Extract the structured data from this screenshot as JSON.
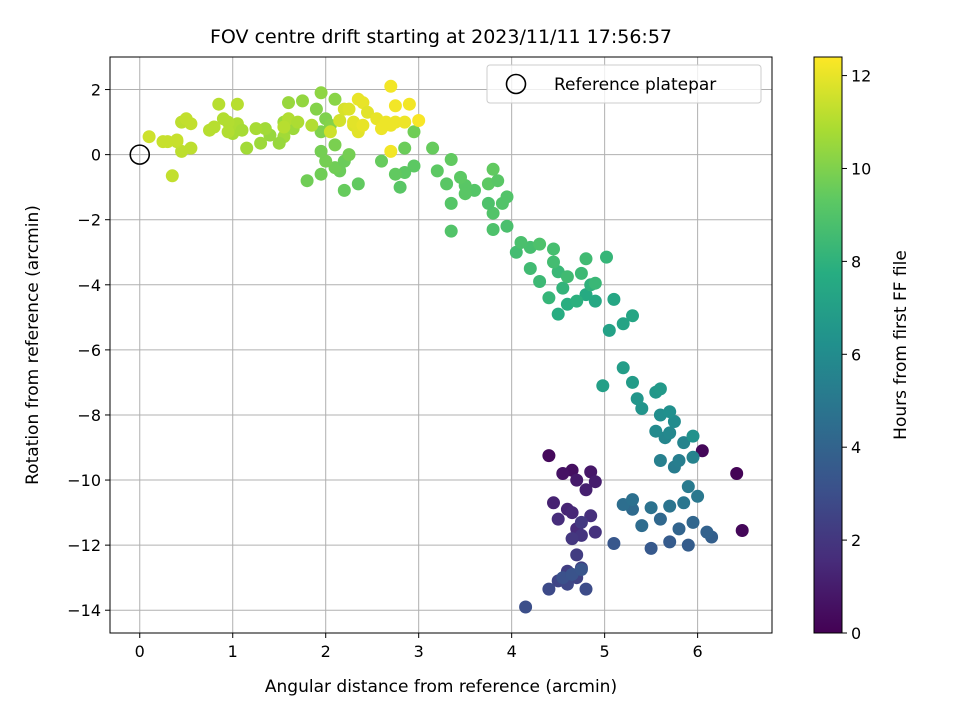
{
  "chart_data": {
    "type": "scatter",
    "title": "FOV centre drift starting at 2023/11/11 17:56:57",
    "xlabel": "Angular distance from reference (arcmin)",
    "ylabel": "Rotation from reference (arcmin)",
    "xlim": [
      -0.32,
      6.8
    ],
    "ylim": [
      -14.7,
      3.0
    ],
    "xticks": [
      0,
      1,
      2,
      3,
      4,
      5,
      6
    ],
    "xtick_labels": [
      "0",
      "1",
      "2",
      "3",
      "4",
      "5",
      "6"
    ],
    "yticks": [
      2,
      0,
      -2,
      -4,
      -6,
      -8,
      -10,
      -12,
      -14
    ],
    "ytick_labels": [
      "2",
      "0",
      "−2",
      "−4",
      "−6",
      "−8",
      "−10",
      "−12",
      "−14"
    ],
    "grid": true,
    "legend": {
      "label": "Reference platepar",
      "placement": "top-right"
    },
    "reference_point": {
      "x": 0,
      "y": 0
    },
    "colorbar": {
      "label": "Hours from first FF file",
      "colormap": "viridis",
      "range": [
        0,
        12.4
      ],
      "ticks": [
        0,
        2,
        4,
        6,
        8,
        10,
        12
      ],
      "tick_labels": [
        "0",
        "2",
        "4",
        "6",
        "8",
        "10",
        "12"
      ]
    },
    "series": [
      {
        "points": [
          [
            4.4,
            -9.25,
            0.3
          ],
          [
            6.05,
            -9.1,
            0.2
          ],
          [
            6.42,
            -9.8,
            0.1
          ],
          [
            6.48,
            -11.55,
            0.2
          ],
          [
            4.65,
            -9.7,
            0.5
          ],
          [
            4.55,
            -9.8,
            0.6
          ],
          [
            4.85,
            -9.75,
            0.8
          ],
          [
            4.7,
            -10.0,
            0.9
          ],
          [
            4.9,
            -10.05,
            1.0
          ],
          [
            4.8,
            -10.3,
            1.1
          ],
          [
            4.45,
            -10.7,
            1.2
          ],
          [
            4.6,
            -10.9,
            1.3
          ],
          [
            4.65,
            -11.0,
            1.4
          ],
          [
            4.7,
            -11.5,
            1.5
          ],
          [
            4.5,
            -11.2,
            1.6
          ],
          [
            4.85,
            -11.1,
            1.7
          ],
          [
            4.9,
            -11.6,
            1.8
          ],
          [
            4.75,
            -11.7,
            1.9
          ],
          [
            4.65,
            -11.8,
            2.0
          ],
          [
            4.75,
            -11.3,
            2.1
          ],
          [
            4.7,
            -12.3,
            2.2
          ],
          [
            4.6,
            -12.8,
            2.3
          ],
          [
            4.75,
            -12.7,
            2.4
          ],
          [
            4.7,
            -13.0,
            2.5
          ],
          [
            4.5,
            -13.1,
            2.6
          ],
          [
            4.6,
            -13.2,
            2.7
          ],
          [
            4.4,
            -13.35,
            2.8
          ],
          [
            4.8,
            -13.35,
            2.9
          ],
          [
            4.15,
            -13.9,
            3.0
          ],
          [
            4.55,
            -13.0,
            3.1
          ],
          [
            4.65,
            -12.9,
            3.2
          ],
          [
            4.75,
            -12.75,
            3.3
          ],
          [
            5.1,
            -11.95,
            3.4
          ],
          [
            5.5,
            -12.1,
            3.5
          ],
          [
            5.7,
            -11.9,
            3.6
          ],
          [
            5.9,
            -12.0,
            3.7
          ],
          [
            6.15,
            -11.75,
            3.8
          ],
          [
            6.1,
            -11.6,
            3.9
          ],
          [
            5.8,
            -11.5,
            4.0
          ],
          [
            5.95,
            -11.3,
            4.1
          ],
          [
            5.6,
            -11.2,
            4.2
          ],
          [
            5.3,
            -10.9,
            4.3
          ],
          [
            5.4,
            -11.4,
            4.4
          ],
          [
            5.2,
            -10.75,
            4.5
          ],
          [
            5.3,
            -10.6,
            4.6
          ],
          [
            5.5,
            -10.85,
            4.7
          ],
          [
            5.7,
            -10.8,
            4.8
          ],
          [
            5.85,
            -10.7,
            4.9
          ],
          [
            6.0,
            -10.5,
            5.0
          ],
          [
            5.9,
            -10.2,
            5.1
          ],
          [
            5.75,
            -9.6,
            5.2
          ],
          [
            5.8,
            -9.4,
            5.3
          ],
          [
            5.6,
            -9.4,
            5.4
          ],
          [
            5.95,
            -9.3,
            5.5
          ],
          [
            5.85,
            -8.85,
            5.6
          ],
          [
            5.65,
            -8.7,
            5.7
          ],
          [
            5.7,
            -8.55,
            5.8
          ],
          [
            5.55,
            -8.5,
            5.9
          ],
          [
            5.75,
            -8.2,
            6.0
          ],
          [
            5.6,
            -8.0,
            6.1
          ],
          [
            5.7,
            -7.9,
            6.2
          ],
          [
            5.95,
            -8.65,
            6.3
          ],
          [
            5.4,
            -7.8,
            6.4
          ],
          [
            5.35,
            -7.5,
            6.5
          ],
          [
            5.55,
            -7.3,
            6.6
          ],
          [
            5.6,
            -7.2,
            6.7
          ],
          [
            5.3,
            -7.0,
            6.8
          ],
          [
            5.2,
            -6.55,
            6.9
          ],
          [
            4.98,
            -7.1,
            7.0
          ],
          [
            5.05,
            -5.4,
            7.1
          ],
          [
            5.2,
            -5.2,
            7.2
          ],
          [
            5.3,
            -4.95,
            7.3
          ],
          [
            5.1,
            -4.45,
            7.4
          ],
          [
            4.9,
            -4.5,
            7.5
          ],
          [
            4.8,
            -4.3,
            7.6
          ],
          [
            4.5,
            -4.9,
            7.7
          ],
          [
            4.6,
            -4.6,
            7.8
          ],
          [
            4.7,
            -4.5,
            7.9
          ],
          [
            4.85,
            -4.0,
            8.0
          ],
          [
            4.55,
            -4.1,
            8.1
          ],
          [
            4.4,
            -4.4,
            8.2
          ],
          [
            4.5,
            -3.6,
            8.3
          ],
          [
            4.3,
            -3.9,
            8.4
          ],
          [
            4.2,
            -3.5,
            8.5
          ],
          [
            4.05,
            -3.0,
            8.6
          ],
          [
            4.2,
            -2.85,
            8.7
          ],
          [
            4.1,
            -2.7,
            8.8
          ],
          [
            4.3,
            -2.75,
            8.9
          ],
          [
            4.45,
            -3.3,
            8.6
          ],
          [
            4.6,
            -3.75,
            8.5
          ],
          [
            4.75,
            -3.65,
            8.4
          ],
          [
            4.9,
            -3.95,
            8.3
          ],
          [
            5.02,
            -3.15,
            8.2
          ],
          [
            4.8,
            -3.2,
            8.5
          ],
          [
            4.45,
            -2.9,
            8.7
          ],
          [
            3.95,
            -2.2,
            8.8
          ],
          [
            3.8,
            -2.3,
            8.9
          ],
          [
            3.8,
            -1.8,
            9.0
          ],
          [
            3.75,
            -1.5,
            8.9
          ],
          [
            3.9,
            -1.5,
            9.0
          ],
          [
            3.6,
            -1.1,
            9.1
          ],
          [
            3.5,
            -0.95,
            9.2
          ],
          [
            3.45,
            -0.7,
            9.3
          ],
          [
            3.35,
            -1.5,
            9.1
          ],
          [
            3.35,
            -2.35,
            9.0
          ],
          [
            3.5,
            -1.2,
            9.2
          ],
          [
            3.75,
            -0.9,
            9.3
          ],
          [
            3.8,
            -0.45,
            9.4
          ],
          [
            3.95,
            -1.3,
            9.0
          ],
          [
            3.85,
            -0.8,
            9.2
          ],
          [
            3.35,
            -0.15,
            9.4
          ],
          [
            3.3,
            -0.9,
            9.2
          ],
          [
            3.2,
            -0.5,
            9.3
          ],
          [
            3.15,
            0.2,
            9.5
          ],
          [
            2.95,
            -0.35,
            9.3
          ],
          [
            2.85,
            -0.55,
            9.3
          ],
          [
            2.8,
            -1.0,
            9.2
          ],
          [
            2.75,
            -0.6,
            9.4
          ],
          [
            2.6,
            -0.2,
            9.5
          ],
          [
            2.85,
            0.2,
            9.6
          ],
          [
            2.95,
            0.7,
            9.7
          ],
          [
            2.35,
            -0.9,
            9.4
          ],
          [
            2.2,
            -1.1,
            9.5
          ],
          [
            2.15,
            -0.5,
            9.6
          ],
          [
            2.1,
            -0.4,
            9.7
          ],
          [
            2.2,
            -0.2,
            9.6
          ],
          [
            2.0,
            -0.2,
            9.8
          ],
          [
            1.95,
            0.1,
            9.8
          ],
          [
            1.95,
            -0.6,
            9.7
          ],
          [
            1.8,
            -0.8,
            9.7
          ],
          [
            2.1,
            0.3,
            9.9
          ],
          [
            2.25,
            0.0,
            9.8
          ],
          [
            1.95,
            0.7,
            10.0
          ],
          [
            2.0,
            1.1,
            10.0
          ],
          [
            2.05,
            0.9,
            10.1
          ],
          [
            1.9,
            1.4,
            10.1
          ],
          [
            2.1,
            1.7,
            10.2
          ],
          [
            1.95,
            1.9,
            10.3
          ],
          [
            1.75,
            1.65,
            10.4
          ],
          [
            1.6,
            1.6,
            10.5
          ],
          [
            1.55,
            1.0,
            10.6
          ],
          [
            1.55,
            0.55,
            10.7
          ],
          [
            1.5,
            0.35,
            10.5
          ],
          [
            1.65,
            0.8,
            10.6
          ],
          [
            1.4,
            0.6,
            10.5
          ],
          [
            1.3,
            0.35,
            10.6
          ],
          [
            1.35,
            0.8,
            10.7
          ],
          [
            1.25,
            0.8,
            10.8
          ],
          [
            1.15,
            0.2,
            10.7
          ],
          [
            1.0,
            0.65,
            10.8
          ],
          [
            1.05,
            0.95,
            10.9
          ],
          [
            1.1,
            0.75,
            10.8
          ],
          [
            0.95,
            1.0,
            11.0
          ],
          [
            0.9,
            1.1,
            11.0
          ],
          [
            0.85,
            1.55,
            11.1
          ],
          [
            1.05,
            1.55,
            11.1
          ],
          [
            0.95,
            0.7,
            11.0
          ],
          [
            0.8,
            0.85,
            11.1
          ],
          [
            0.75,
            0.75,
            11.1
          ],
          [
            0.55,
            0.2,
            11.2
          ],
          [
            0.45,
            0.1,
            11.2
          ],
          [
            0.4,
            0.4,
            11.3
          ],
          [
            0.35,
            -0.65,
            11.3
          ],
          [
            0.45,
            1.0,
            11.2
          ],
          [
            0.5,
            1.1,
            11.3
          ],
          [
            0.55,
            0.95,
            11.3
          ],
          [
            0.3,
            0.4,
            11.4
          ],
          [
            0.25,
            0.4,
            11.4
          ],
          [
            0.1,
            0.55,
            11.5
          ],
          [
            0.4,
            0.45,
            11.4
          ],
          [
            1.6,
            1.1,
            11.0
          ],
          [
            1.7,
            1.0,
            10.9
          ],
          [
            1.55,
            0.85,
            11.1
          ],
          [
            1.85,
            0.9,
            11.0
          ],
          [
            2.05,
            0.7,
            11.5
          ],
          [
            2.15,
            1.05,
            11.6
          ],
          [
            2.2,
            1.4,
            11.7
          ],
          [
            2.25,
            1.4,
            11.8
          ],
          [
            2.3,
            0.9,
            11.8
          ],
          [
            2.35,
            0.7,
            11.9
          ],
          [
            2.3,
            1.0,
            11.9
          ],
          [
            2.35,
            1.7,
            12.0
          ],
          [
            2.4,
            1.6,
            12.0
          ],
          [
            2.45,
            1.3,
            11.9
          ],
          [
            2.55,
            1.1,
            12.0
          ],
          [
            2.6,
            0.8,
            12.1
          ],
          [
            2.7,
            0.9,
            12.1
          ],
          [
            2.75,
            1.0,
            12.1
          ],
          [
            2.7,
            2.1,
            12.2
          ],
          [
            2.75,
            1.5,
            12.2
          ],
          [
            2.9,
            1.55,
            12.2
          ],
          [
            2.85,
            1.0,
            12.1
          ],
          [
            3.0,
            1.05,
            12.3
          ],
          [
            2.7,
            0.1,
            12.2
          ],
          [
            2.4,
            0.9,
            12.0
          ],
          [
            2.65,
            1.0,
            12.1
          ]
        ]
      }
    ]
  }
}
